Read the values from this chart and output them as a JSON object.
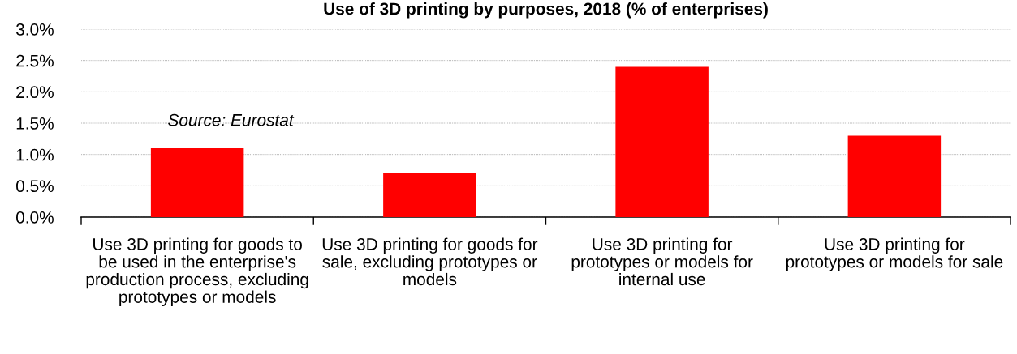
{
  "chart_data": {
    "type": "bar",
    "title": "Use of 3D printing by purposes, 2018 (% of enterprises)",
    "categories": [
      "Use 3D printing for goods to be used in the enterprise's production process, excluding prototypes or models",
      "Use 3D printing for goods for sale, excluding prototypes or models",
      "Use 3D printing for prototypes or models for internal use",
      "Use 3D printing for prototypes or models for sale"
    ],
    "values": [
      1.1,
      0.7,
      2.4,
      1.3
    ],
    "color": "#ff0000",
    "ylim": [
      0,
      3
    ],
    "yticks": [
      {
        "value": 0,
        "label": "0.0%"
      },
      {
        "value": 0.5,
        "label": "0.5%"
      },
      {
        "value": 1,
        "label": "1.0%"
      },
      {
        "value": 1.5,
        "label": "1.5%"
      },
      {
        "value": 2,
        "label": "2.0%"
      },
      {
        "value": 2.5,
        "label": "2.5%"
      },
      {
        "value": 3,
        "label": "3.0%"
      }
    ],
    "grid": "y",
    "annotations": [
      "Source: Eurostat"
    ]
  }
}
